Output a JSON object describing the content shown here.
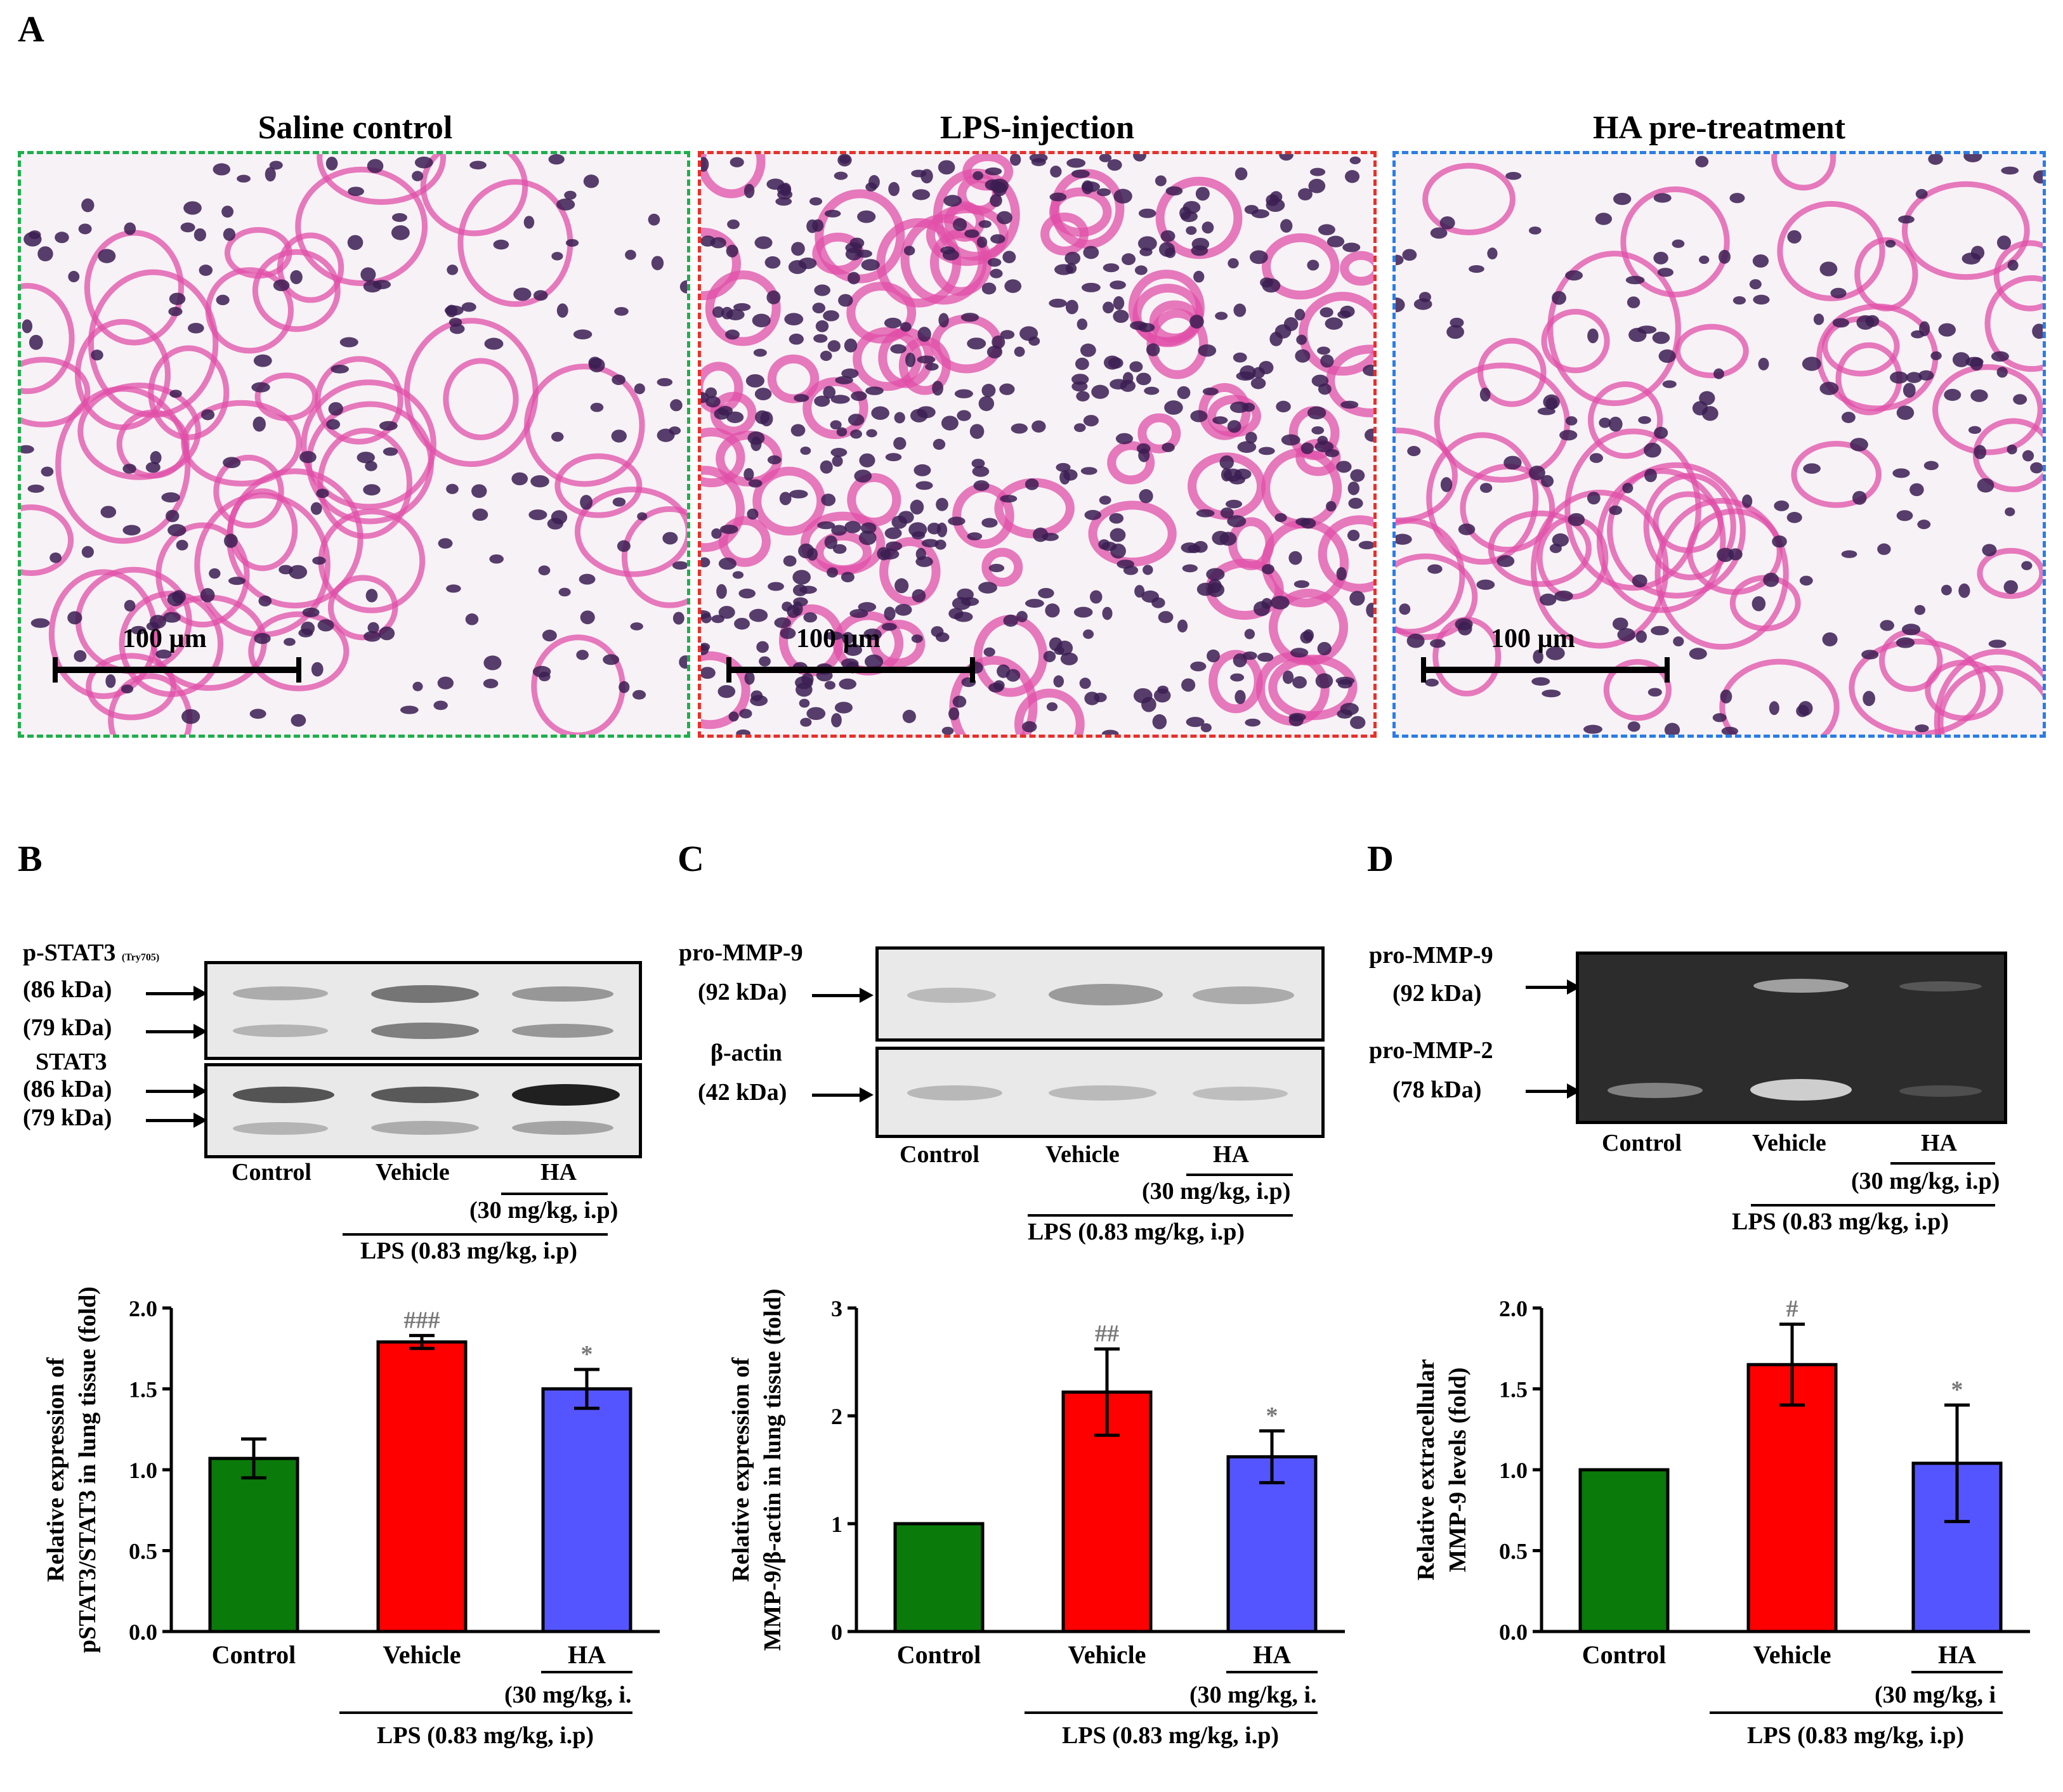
{
  "panel_letters": {
    "a": "A",
    "b": "B",
    "c": "C",
    "d": "D"
  },
  "histology": {
    "panels": [
      {
        "title": "Saline control",
        "border_color": "#1faf4b",
        "scale_label": "100 µm"
      },
      {
        "title": "LPS-injection",
        "border_color": "#e8302a",
        "scale_label": "100 µm"
      },
      {
        "title": "HA pre-treatment",
        "border_color": "#2b7de6",
        "scale_label": "100 µm"
      }
    ],
    "tissue_colors": {
      "background": "#f7f2f6",
      "stroma": "#e04fa8",
      "nucleus": "#3b1d52"
    }
  },
  "blot_b": {
    "label1": "p-STAT3",
    "label1_sub": "(Try705)",
    "label1_kda1": "(86 kDa)",
    "label1_kda2": "(79 kDa)",
    "label2": "STAT3",
    "label2_kda1": "(86 kDa)",
    "label2_kda2": "(79 kDa)",
    "lanes": [
      "Control",
      "Vehicle",
      "HA"
    ],
    "ha_dose": "(30 mg/kg, i.p)",
    "lps": "LPS (0.83 mg/kg, i.p)"
  },
  "blot_c": {
    "label1": "pro-MMP-9",
    "label1_kda": "(92 kDa)",
    "label2": "β-actin",
    "label2_kda": "(42 kDa)",
    "lanes": [
      "Control",
      "Vehicle",
      "HA"
    ],
    "ha_dose": "(30 mg/kg, i.p)",
    "lps": "LPS (0.83 mg/kg, i.p)"
  },
  "gel_d": {
    "label1": "pro-MMP-9",
    "label1_kda": "(92 kDa)",
    "label2": "pro-MMP-2",
    "label2_kda": "(78 kDa)",
    "lanes": [
      "Control",
      "Vehicle",
      "HA"
    ],
    "ha_dose": "(30 mg/kg, i.p)",
    "lps": "LPS (0.83 mg/kg, i.p)"
  },
  "chart_data": [
    {
      "type": "bar",
      "panel": "B",
      "ylabel_line1": "Relative expression of",
      "ylabel_line2": "pSTAT3/STAT3 in lung tissue (fold)",
      "categories": [
        "Control",
        "Vehicle",
        "HA"
      ],
      "values": [
        1.07,
        1.79,
        1.5
      ],
      "errors": [
        0.12,
        0.04,
        0.12
      ],
      "annotations": [
        "",
        "###",
        "*"
      ],
      "colors": [
        "#0a7a0a",
        "#ff0000",
        "#5555ff"
      ],
      "ylim": [
        0,
        2.0
      ],
      "yticks": [
        "0.0",
        "0.5",
        "1.0",
        "1.5",
        "2.0"
      ],
      "ha_dose": "(30 mg/kg, i.",
      "lps": "LPS (0.83 mg/kg, i.p)"
    },
    {
      "type": "bar",
      "panel": "C",
      "ylabel_line1": "Relative expression of",
      "ylabel_line2": "MMP-9/β-actin in lung tissue (fold)",
      "categories": [
        "Control",
        "Vehicle",
        "HA"
      ],
      "values": [
        1.0,
        2.22,
        1.62
      ],
      "errors": [
        0.0,
        0.4,
        0.24
      ],
      "annotations": [
        "",
        "##",
        "*"
      ],
      "colors": [
        "#0a7a0a",
        "#ff0000",
        "#5555ff"
      ],
      "ylim": [
        0,
        3
      ],
      "yticks": [
        "0",
        "1",
        "2",
        "3"
      ],
      "ha_dose": "(30 mg/kg, i.",
      "lps": "LPS (0.83 mg/kg, i.p)"
    },
    {
      "type": "bar",
      "panel": "D",
      "ylabel_line1": "Relative extracellular",
      "ylabel_line2": "MMP-9 levels (fold)",
      "categories": [
        "Control",
        "Vehicle",
        "HA"
      ],
      "values": [
        1.0,
        1.65,
        1.04
      ],
      "errors": [
        0.0,
        0.25,
        0.36
      ],
      "annotations": [
        "",
        "#",
        "*"
      ],
      "colors": [
        "#0a7a0a",
        "#ff0000",
        "#5555ff"
      ],
      "ylim": [
        0,
        2.0
      ],
      "yticks": [
        "0.0",
        "0.5",
        "1.0",
        "1.5",
        "2.0"
      ],
      "ha_dose": "(30 mg/kg, i",
      "lps": "LPS (0.83 mg/kg, i.p)"
    }
  ]
}
